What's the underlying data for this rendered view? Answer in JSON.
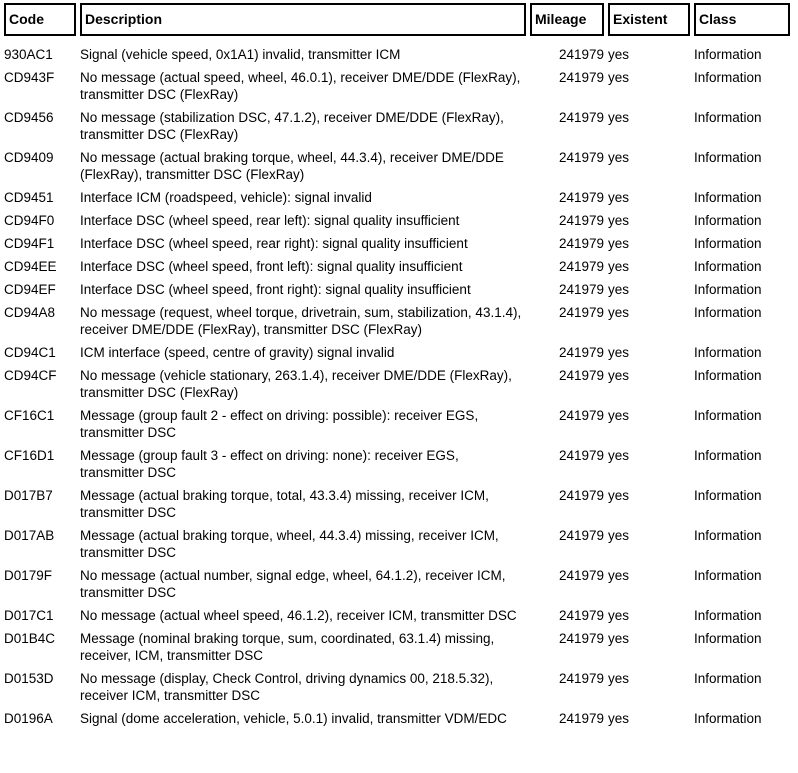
{
  "table": {
    "columns": [
      {
        "key": "code",
        "label": "Code"
      },
      {
        "key": "description",
        "label": "Description"
      },
      {
        "key": "mileage",
        "label": "Mileage"
      },
      {
        "key": "existent",
        "label": "Existent"
      },
      {
        "key": "class",
        "label": "Class"
      }
    ],
    "rows": [
      {
        "code": "930AC1",
        "description": "Signal (vehicle speed, 0x1A1) invalid, transmitter ICM",
        "mileage": "241979",
        "existent": "yes",
        "class": "Information"
      },
      {
        "code": "CD943F",
        "description": "No message (actual speed, wheel, 46.0.1), receiver DME/DDE (FlexRay), transmitter DSC (FlexRay)",
        "mileage": "241979",
        "existent": "yes",
        "class": "Information"
      },
      {
        "code": "CD9456",
        "description": "No message (stabilization DSC, 47.1.2), receiver DME/DDE (FlexRay), transmitter DSC (FlexRay)",
        "mileage": "241979",
        "existent": "yes",
        "class": "Information"
      },
      {
        "code": "CD9409",
        "description": "No message (actual braking torque, wheel, 44.3.4), receiver DME/DDE (FlexRay), transmitter DSC (FlexRay)",
        "mileage": "241979",
        "existent": "yes",
        "class": "Information"
      },
      {
        "code": "CD9451",
        "description": "Interface ICM (roadspeed, vehicle): signal invalid",
        "mileage": "241979",
        "existent": "yes",
        "class": "Information"
      },
      {
        "code": "CD94F0",
        "description": "Interface DSC (wheel speed, rear left): signal quality insufficient",
        "mileage": "241979",
        "existent": "yes",
        "class": "Information"
      },
      {
        "code": "CD94F1",
        "description": "Interface DSC (wheel speed, rear right): signal quality insufficient",
        "mileage": "241979",
        "existent": "yes",
        "class": "Information"
      },
      {
        "code": "CD94EE",
        "description": "Interface DSC (wheel speed, front left): signal quality insufficient",
        "mileage": "241979",
        "existent": "yes",
        "class": "Information"
      },
      {
        "code": "CD94EF",
        "description": "Interface DSC (wheel speed, front right): signal quality insufficient",
        "mileage": "241979",
        "existent": "yes",
        "class": "Information"
      },
      {
        "code": "CD94A8",
        "description": "No message (request, wheel torque, drivetrain, sum, stabilization, 43.1.4), receiver DME/DDE (FlexRay), transmitter DSC (FlexRay)",
        "mileage": "241979",
        "existent": "yes",
        "class": "Information"
      },
      {
        "code": "CD94C1",
        "description": "ICM interface (speed, centre of gravity) signal invalid",
        "mileage": "241979",
        "existent": "yes",
        "class": "Information"
      },
      {
        "code": "CD94CF",
        "description": "No message (vehicle stationary, 263.1.4), receiver DME/DDE (FlexRay), transmitter DSC (FlexRay)",
        "mileage": "241979",
        "existent": "yes",
        "class": "Information"
      },
      {
        "code": "CF16C1",
        "description": "Message (group fault 2 - effect on driving: possible): receiver EGS, transmitter DSC",
        "mileage": "241979",
        "existent": "yes",
        "class": "Information"
      },
      {
        "code": "CF16D1",
        "description": "Message (group fault 3 - effect on driving: none): receiver EGS, transmitter DSC",
        "mileage": "241979",
        "existent": "yes",
        "class": "Information"
      },
      {
        "code": "D017B7",
        "description": "Message (actual braking torque, total, 43.3.4) missing, receiver ICM, transmitter DSC",
        "mileage": "241979",
        "existent": "yes",
        "class": "Information"
      },
      {
        "code": "D017AB",
        "description": "Message (actual braking torque, wheel, 44.3.4) missing, receiver ICM, transmitter DSC",
        "mileage": "241979",
        "existent": "yes",
        "class": "Information"
      },
      {
        "code": "D0179F",
        "description": "No message (actual number, signal edge, wheel, 64.1.2), receiver ICM, transmitter DSC",
        "mileage": "241979",
        "existent": "yes",
        "class": "Information"
      },
      {
        "code": "D017C1",
        "description": "No message (actual wheel speed, 46.1.2), receiver ICM, transmitter DSC",
        "mileage": "241979",
        "existent": "yes",
        "class": "Information"
      },
      {
        "code": "D01B4C",
        "description": "Message (nominal braking torque, sum, coordinated, 63.1.4) missing, receiver, ICM, transmitter DSC",
        "mileage": "241979",
        "existent": "yes",
        "class": "Information"
      },
      {
        "code": "D0153D",
        "description": "No message (display, Check Control, driving dynamics 00, 218.5.32), receiver ICM, transmitter DSC",
        "mileage": "241979",
        "existent": "yes",
        "class": "Information"
      },
      {
        "code": "D0196A",
        "description": "Signal (dome acceleration, vehicle, 5.0.1) invalid, transmitter VDM/EDC",
        "mileage": "241979",
        "existent": "yes",
        "class": "Information"
      }
    ]
  }
}
